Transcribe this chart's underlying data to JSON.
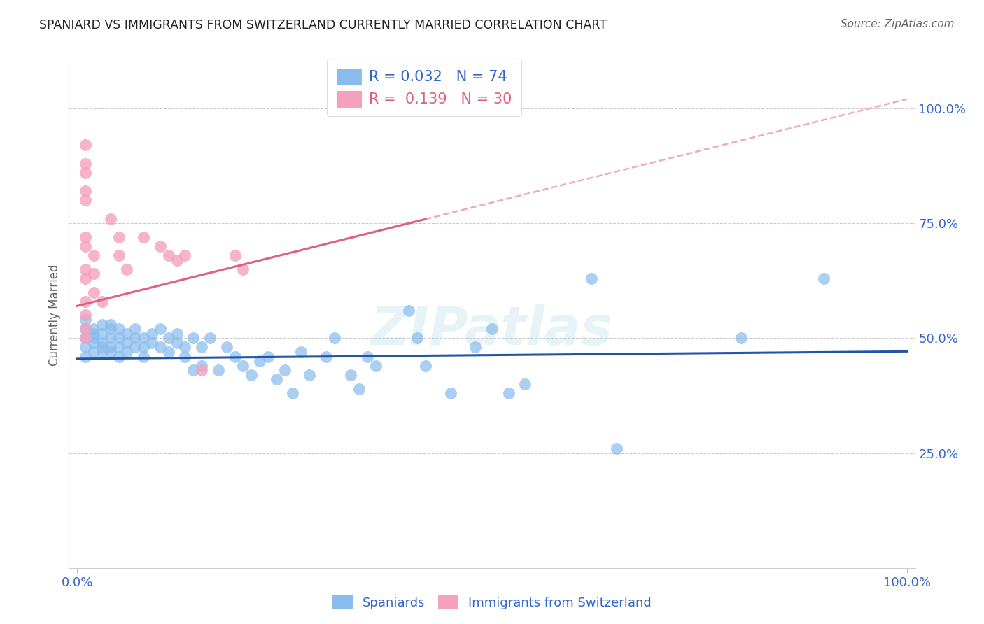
{
  "title": "SPANIARD VS IMMIGRANTS FROM SWITZERLAND CURRENTLY MARRIED CORRELATION CHART",
  "source": "Source: ZipAtlas.com",
  "ylabel": "Currently Married",
  "watermark": "ZIPatlas",
  "blue_points": [
    [
      0.01,
      0.5
    ],
    [
      0.01,
      0.48
    ],
    [
      0.01,
      0.46
    ],
    [
      0.01,
      0.52
    ],
    [
      0.01,
      0.54
    ],
    [
      0.02,
      0.5
    ],
    [
      0.02,
      0.49
    ],
    [
      0.02,
      0.47
    ],
    [
      0.02,
      0.52
    ],
    [
      0.02,
      0.51
    ],
    [
      0.03,
      0.49
    ],
    [
      0.03,
      0.51
    ],
    [
      0.03,
      0.48
    ],
    [
      0.03,
      0.53
    ],
    [
      0.03,
      0.47
    ],
    [
      0.04,
      0.5
    ],
    [
      0.04,
      0.48
    ],
    [
      0.04,
      0.52
    ],
    [
      0.04,
      0.47
    ],
    [
      0.04,
      0.53
    ],
    [
      0.05,
      0.5
    ],
    [
      0.05,
      0.48
    ],
    [
      0.05,
      0.46
    ],
    [
      0.05,
      0.52
    ],
    [
      0.06,
      0.51
    ],
    [
      0.06,
      0.49
    ],
    [
      0.06,
      0.47
    ],
    [
      0.07,
      0.5
    ],
    [
      0.07,
      0.48
    ],
    [
      0.07,
      0.52
    ],
    [
      0.08,
      0.5
    ],
    [
      0.08,
      0.48
    ],
    [
      0.08,
      0.46
    ],
    [
      0.09,
      0.49
    ],
    [
      0.09,
      0.51
    ],
    [
      0.1,
      0.48
    ],
    [
      0.1,
      0.52
    ],
    [
      0.11,
      0.5
    ],
    [
      0.11,
      0.47
    ],
    [
      0.12,
      0.49
    ],
    [
      0.12,
      0.51
    ],
    [
      0.13,
      0.48
    ],
    [
      0.13,
      0.46
    ],
    [
      0.14,
      0.5
    ],
    [
      0.14,
      0.43
    ],
    [
      0.15,
      0.48
    ],
    [
      0.15,
      0.44
    ],
    [
      0.16,
      0.5
    ],
    [
      0.17,
      0.43
    ],
    [
      0.18,
      0.48
    ],
    [
      0.19,
      0.46
    ],
    [
      0.2,
      0.44
    ],
    [
      0.21,
      0.42
    ],
    [
      0.22,
      0.45
    ],
    [
      0.23,
      0.46
    ],
    [
      0.24,
      0.41
    ],
    [
      0.25,
      0.43
    ],
    [
      0.26,
      0.38
    ],
    [
      0.27,
      0.47
    ],
    [
      0.28,
      0.42
    ],
    [
      0.3,
      0.46
    ],
    [
      0.31,
      0.5
    ],
    [
      0.33,
      0.42
    ],
    [
      0.34,
      0.39
    ],
    [
      0.35,
      0.46
    ],
    [
      0.36,
      0.44
    ],
    [
      0.4,
      0.56
    ],
    [
      0.41,
      0.5
    ],
    [
      0.42,
      0.44
    ],
    [
      0.45,
      0.38
    ],
    [
      0.48,
      0.48
    ],
    [
      0.5,
      0.52
    ],
    [
      0.52,
      0.38
    ],
    [
      0.54,
      0.4
    ],
    [
      0.62,
      0.63
    ],
    [
      0.65,
      0.26
    ],
    [
      0.8,
      0.5
    ],
    [
      0.9,
      0.63
    ]
  ],
  "pink_points": [
    [
      0.01,
      0.92
    ],
    [
      0.01,
      0.88
    ],
    [
      0.01,
      0.86
    ],
    [
      0.01,
      0.82
    ],
    [
      0.01,
      0.8
    ],
    [
      0.01,
      0.72
    ],
    [
      0.01,
      0.7
    ],
    [
      0.01,
      0.65
    ],
    [
      0.01,
      0.63
    ],
    [
      0.01,
      0.58
    ],
    [
      0.01,
      0.55
    ],
    [
      0.01,
      0.52
    ],
    [
      0.01,
      0.5
    ],
    [
      0.02,
      0.68
    ],
    [
      0.02,
      0.64
    ],
    [
      0.02,
      0.6
    ],
    [
      0.03,
      0.58
    ],
    [
      0.04,
      0.76
    ],
    [
      0.05,
      0.72
    ],
    [
      0.05,
      0.68
    ],
    [
      0.06,
      0.65
    ],
    [
      0.08,
      0.72
    ],
    [
      0.1,
      0.7
    ],
    [
      0.11,
      0.68
    ],
    [
      0.12,
      0.67
    ],
    [
      0.13,
      0.68
    ],
    [
      0.15,
      0.43
    ],
    [
      0.19,
      0.68
    ],
    [
      0.2,
      0.65
    ]
  ],
  "blue_color": "#88bbee",
  "pink_color": "#f5a0bc",
  "blue_line_color": "#2255aa",
  "pink_line_color": "#e06080",
  "pink_dash_color": "#f0aabb",
  "grid_color": "#cccccc",
  "background_color": "#ffffff",
  "text_color": "#3366cc",
  "title_color": "#222222"
}
